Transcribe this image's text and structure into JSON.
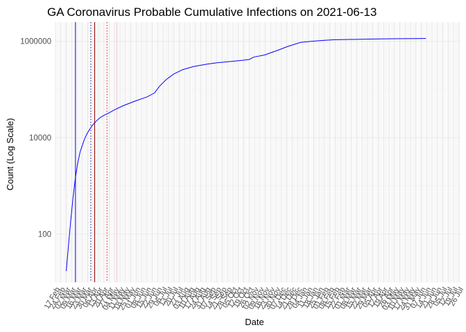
{
  "chart_data": {
    "type": "line",
    "title": "GA Coronavirus Probable Cumulative Infections on 2021-06-13",
    "xlabel": "Date",
    "ylabel": "Count (Log Scale)",
    "y_scale": "log10",
    "ylim": [
      10,
      2500000
    ],
    "y_ticks": [
      100,
      10000,
      1000000
    ],
    "y_tick_labels": [
      "100",
      "10000",
      "1000000"
    ],
    "xlim": [
      "2020-02-17",
      "2021-07-28"
    ],
    "x_tick_labels": [
      "17 Feb",
      "24 Feb",
      "02 Mar",
      "09 Mar",
      "16 Mar",
      "23 Mar",
      "30 Mar",
      "06 Apr",
      "13 Apr",
      "20 Apr",
      "27 Apr",
      "04 May",
      "11 May",
      "18 May",
      "25 May",
      "01 Jun",
      "08 Jun",
      "15 Jun",
      "22 Jun",
      "29 Jun",
      "06 Jul",
      "13 Jul",
      "20 Jul",
      "27 Jul",
      "03 Aug",
      "10 Aug",
      "17 Aug",
      "24 Aug",
      "31 Aug",
      "07 Sep",
      "14 Sep",
      "21 Sep",
      "28 Sep",
      "05 Oct",
      "12 Oct",
      "19 Oct",
      "26 Oct",
      "02 Nov",
      "09 Nov",
      "16 Nov",
      "23 Nov",
      "30 Nov",
      "07 Dec",
      "14 Dec",
      "21 Dec",
      "28 Dec",
      "04 Jan",
      "11 Jan",
      "18 Jan",
      "25 Jan",
      "01 Feb",
      "08 Feb",
      "15 Feb",
      "22 Feb",
      "01 Mar",
      "08 Mar",
      "15 Mar",
      "22 Mar",
      "29 Mar",
      "05 Apr",
      "12 Apr",
      "19 Apr",
      "26 Apr",
      "03 May",
      "10 May",
      "17 May",
      "24 May",
      "31 May",
      "07 Jun",
      "14 Jun",
      "21 Jun",
      "28 Jun",
      "05 Jul",
      "12 Jul",
      "19 Jul",
      "26 Jul"
    ],
    "grid": true,
    "series": [
      {
        "color": "#0000ff",
        "x": [
          "2020-03-02",
          "2020-03-05",
          "2020-03-08",
          "2020-03-11",
          "2020-03-14",
          "2020-03-17",
          "2020-03-20",
          "2020-03-23",
          "2020-03-26",
          "2020-03-29",
          "2020-04-01",
          "2020-04-05",
          "2020-04-10",
          "2020-04-15",
          "2020-04-20",
          "2020-04-27",
          "2020-05-04",
          "2020-05-15",
          "2020-05-30",
          "2020-06-15",
          "2020-06-25",
          "2020-07-01",
          "2020-07-10",
          "2020-07-20",
          "2020-08-01",
          "2020-08-15",
          "2020-09-01",
          "2020-09-15",
          "2020-10-01",
          "2020-10-15",
          "2020-10-26",
          "2020-11-01",
          "2020-11-15",
          "2020-12-01",
          "2020-12-15",
          "2021-01-01",
          "2021-01-15",
          "2021-02-01",
          "2021-02-15",
          "2021-03-01",
          "2021-03-15",
          "2021-04-01",
          "2021-04-15",
          "2021-05-01",
          "2021-05-15",
          "2021-06-01",
          "2021-06-13"
        ],
        "y": [
          17,
          60,
          200,
          600,
          1500,
          3000,
          5000,
          7000,
          9500,
          12000,
          14500,
          18000,
          22000,
          26000,
          29000,
          33000,
          38000,
          46000,
          57000,
          70000,
          85000,
          115000,
          160000,
          210000,
          260000,
          300000,
          335000,
          360000,
          380000,
          400000,
          420000,
          470000,
          520000,
          640000,
          780000,
          950000,
          1000000,
          1050000,
          1080000,
          1090000,
          1100000,
          1110000,
          1120000,
          1130000,
          1135000,
          1140000,
          1145000
        ]
      }
    ],
    "vlines": [
      {
        "date": "2020-03-14",
        "color": "#0000ff",
        "style": "solid"
      },
      {
        "date": "2020-04-03",
        "color": "#00008b",
        "style": "dotted"
      },
      {
        "date": "2020-04-08",
        "color": "#8b0000",
        "style": "solid"
      },
      {
        "date": "2020-04-24",
        "color": "#ff0000",
        "style": "dotted"
      },
      {
        "date": "2020-05-07",
        "color": "#ffc0cb",
        "style": "solid"
      }
    ]
  }
}
